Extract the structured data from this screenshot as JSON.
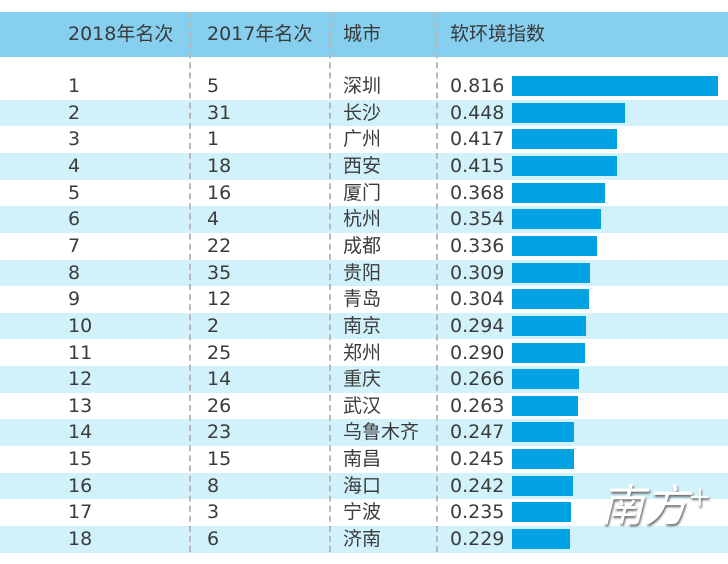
{
  "chart_data": {
    "type": "table",
    "columns": [
      "2018年名次",
      "2017年名次",
      "城市",
      "软环境指数"
    ],
    "rows": [
      [
        1,
        5,
        "深圳",
        0.816
      ],
      [
        2,
        31,
        "长沙",
        0.448
      ],
      [
        3,
        1,
        "广州",
        0.417
      ],
      [
        4,
        18,
        "西安",
        0.415
      ],
      [
        5,
        16,
        "厦门",
        0.368
      ],
      [
        6,
        4,
        "杭州",
        0.354
      ],
      [
        7,
        22,
        "成都",
        0.336
      ],
      [
        8,
        35,
        "贵阳",
        0.309
      ],
      [
        9,
        12,
        "青岛",
        0.304
      ],
      [
        10,
        2,
        "南京",
        0.294
      ],
      [
        11,
        25,
        "郑州",
        0.29
      ],
      [
        12,
        14,
        "重庆",
        0.266
      ],
      [
        13,
        26,
        "武汉",
        0.263
      ],
      [
        14,
        23,
        "乌鲁木齐",
        0.247
      ],
      [
        15,
        15,
        "南昌",
        0.245
      ],
      [
        16,
        8,
        "海口",
        0.242
      ],
      [
        17,
        3,
        "宁波",
        0.235
      ],
      [
        18,
        6,
        "济南",
        0.229
      ]
    ],
    "bar_color": "#00a2e3",
    "header_color": "#86cfef",
    "alt_row_color": "#d2f2fb"
  },
  "watermark": "南方+"
}
